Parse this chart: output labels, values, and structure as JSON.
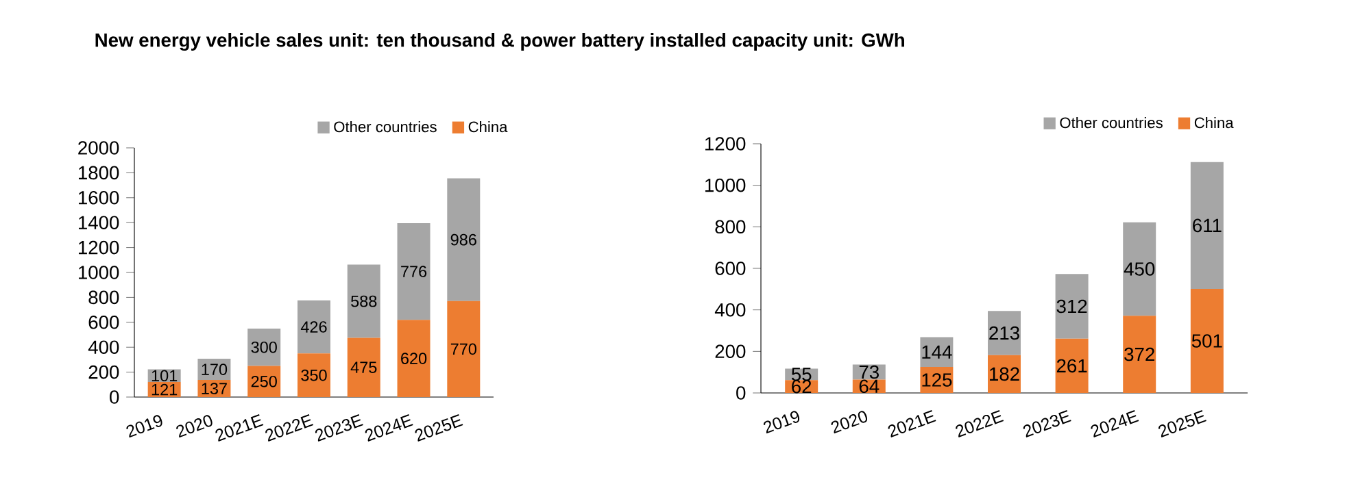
{
  "chart_data": [
    {
      "type": "bar",
      "title": "New energy vehicle sales unit: ten thousand & power battery installed capacity unit: GWh",
      "stacked": true,
      "data_labels": true,
      "legend": "top",
      "categories": [
        "2019",
        "2020",
        "2021E",
        "2022E",
        "2023E",
        "2024E",
        "2025E"
      ],
      "ylim": [
        0,
        2000
      ],
      "yticks": [
        0,
        200,
        400,
        600,
        800,
        1000,
        1200,
        1400,
        1600,
        1800,
        2000
      ],
      "series": [
        {
          "name": "China",
          "color": "#ed7d31",
          "values": [
            121,
            137,
            250,
            350,
            475,
            620,
            770
          ]
        },
        {
          "name": "Other countries",
          "color": "#a6a6a6",
          "values": [
            101,
            170,
            300,
            426,
            588,
            776,
            986
          ]
        }
      ]
    },
    {
      "type": "bar",
      "stacked": true,
      "data_labels": true,
      "legend": "top",
      "categories": [
        "2019",
        "2020",
        "2021E",
        "2022E",
        "2023E",
        "2024E",
        "2025E"
      ],
      "ylim": [
        0,
        1200
      ],
      "yticks": [
        0,
        200,
        400,
        600,
        800,
        1000,
        1200
      ],
      "series": [
        {
          "name": "China",
          "color": "#ed7d31",
          "values": [
            62,
            64,
            125,
            182,
            261,
            372,
            501
          ]
        },
        {
          "name": "Other countries",
          "color": "#a6a6a6",
          "values": [
            55,
            73,
            144,
            213,
            312,
            450,
            611
          ]
        }
      ]
    }
  ]
}
